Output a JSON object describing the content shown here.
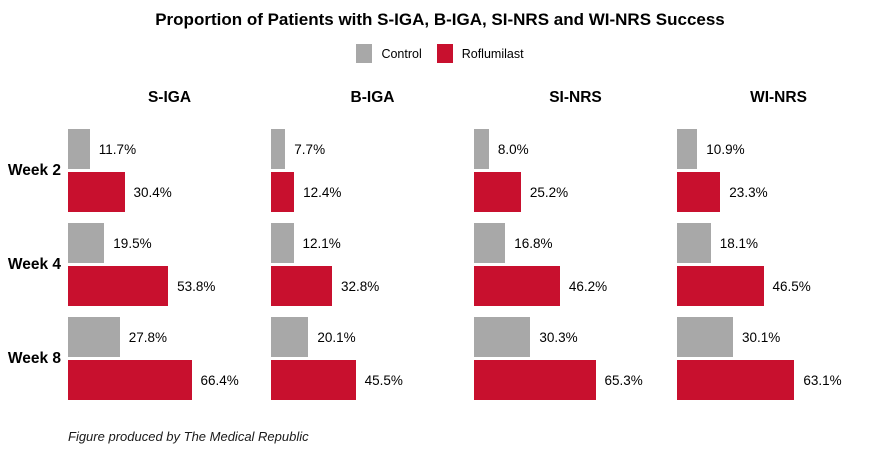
{
  "title": "Proportion of Patients with S-IGA, B-IGA, SI-NRS and WI-NRS Success",
  "legend": {
    "items": [
      {
        "label": "Control",
        "color": "#A8A8A8"
      },
      {
        "label": "Roflumilast",
        "color": "#C8102E"
      }
    ]
  },
  "footer": "Figure produced by The Medical Republic",
  "chart_data": {
    "type": "bar",
    "orientation": "horizontal",
    "categories": [
      "Week 2",
      "Week 4",
      "Week 8"
    ],
    "value_suffix": "%",
    "xlim": [
      0,
      70
    ],
    "grid": false,
    "legend_position": "top-center",
    "colors": {
      "Control": "#A8A8A8",
      "Roflumilast": "#C8102E"
    },
    "panels": [
      {
        "title": "S-IGA",
        "series": [
          {
            "name": "Control",
            "values": [
              11.7,
              19.5,
              27.8
            ]
          },
          {
            "name": "Roflumilast",
            "values": [
              30.4,
              53.8,
              66.4
            ]
          }
        ]
      },
      {
        "title": "B-IGA",
        "series": [
          {
            "name": "Control",
            "values": [
              7.7,
              12.1,
              20.1
            ]
          },
          {
            "name": "Roflumilast",
            "values": [
              12.4,
              32.8,
              45.5
            ]
          }
        ]
      },
      {
        "title": "SI-NRS",
        "series": [
          {
            "name": "Control",
            "values": [
              8.0,
              16.8,
              30.3
            ]
          },
          {
            "name": "Roflumilast",
            "values": [
              25.2,
              46.2,
              65.3
            ]
          }
        ]
      },
      {
        "title": "WI-NRS",
        "series": [
          {
            "name": "Control",
            "values": [
              10.9,
              18.1,
              30.1
            ]
          },
          {
            "name": "Roflumilast",
            "values": [
              23.3,
              46.5,
              63.1
            ]
          }
        ]
      }
    ]
  }
}
